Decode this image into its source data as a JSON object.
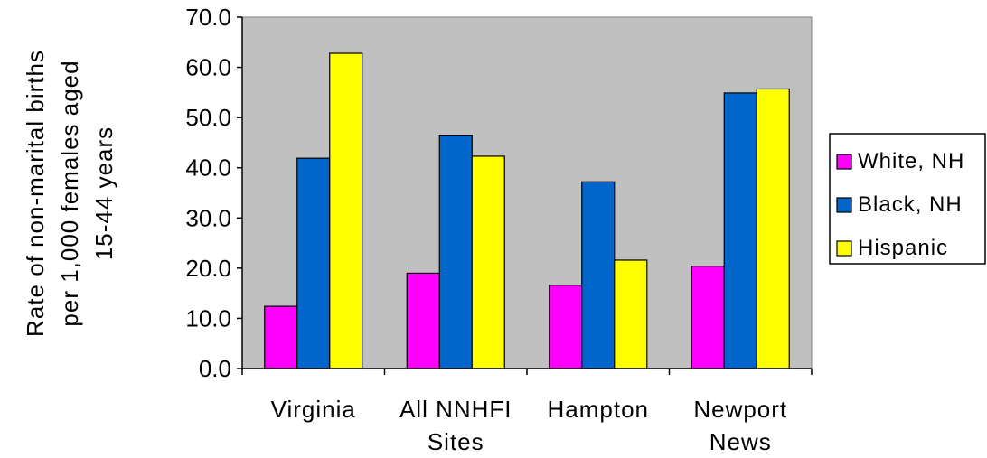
{
  "chart_data": {
    "type": "bar",
    "categories": [
      [
        "Virginia"
      ],
      [
        "All NNHFI",
        "Sites"
      ],
      [
        "Hampton"
      ],
      [
        "Newport",
        "News"
      ]
    ],
    "series": [
      {
        "name": "White, NH",
        "color": "#ff00ff",
        "values": [
          12.4,
          19.0,
          16.6,
          20.4
        ]
      },
      {
        "name": "Black, NH",
        "color": "#0066cc",
        "values": [
          41.9,
          46.5,
          37.2,
          54.9
        ]
      },
      {
        "name": "Hispanic",
        "color": "#ffff00",
        "values": [
          62.8,
          42.3,
          21.6,
          55.7
        ]
      }
    ],
    "ylabel_lines": [
      "Rate of non-marital births",
      "per 1,000 females aged",
      "15-44 years"
    ],
    "ylim": [
      0,
      70
    ],
    "yticks": [
      "0.0",
      "10.0",
      "20.0",
      "30.0",
      "40.0",
      "50.0",
      "60.0",
      "70.0"
    ],
    "plot_background": "#c0c0c0",
    "grid": false,
    "legend_position": "right"
  }
}
